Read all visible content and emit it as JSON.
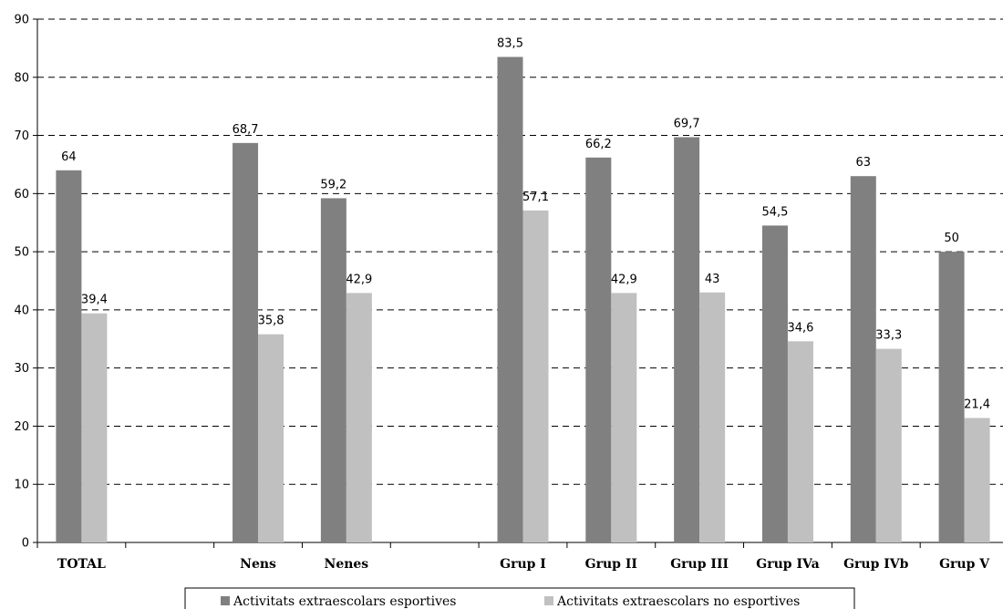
{
  "chart_data": {
    "type": "bar",
    "categories": [
      "TOTAL",
      "",
      "Nens",
      "Nenes",
      "",
      "Grup I",
      "Grup II",
      "Grup III",
      "Grup IVa",
      "Grup IVb",
      "Grup V"
    ],
    "series": [
      {
        "name": "Activitats extraescolars esportives",
        "color": "#808080",
        "values": [
          64,
          null,
          68.7,
          59.2,
          null,
          83.5,
          66.2,
          69.7,
          54.5,
          63,
          50
        ],
        "labels": [
          "64",
          "",
          "68,7",
          "59,2",
          "",
          "83,5",
          "66,2",
          "69,7",
          "54,5",
          "63",
          "50"
        ]
      },
      {
        "name": "Activitats extraescolars no esportives",
        "color": "#c0c0c0",
        "values": [
          39.4,
          null,
          35.8,
          42.9,
          null,
          57.1,
          42.9,
          43,
          34.6,
          33.3,
          21.4
        ],
        "labels": [
          "39,4",
          "",
          "35,8",
          "42,9",
          "",
          "57,1",
          "42,9",
          "43",
          "34,6",
          "33,3",
          "21,4"
        ]
      }
    ],
    "yticks": [
      "0",
      "10",
      "20",
      "30",
      "40",
      "50",
      "60",
      "70",
      "80",
      "90"
    ],
    "ylim": [
      0,
      90
    ],
    "grid": true,
    "legend_position": "bottom"
  }
}
